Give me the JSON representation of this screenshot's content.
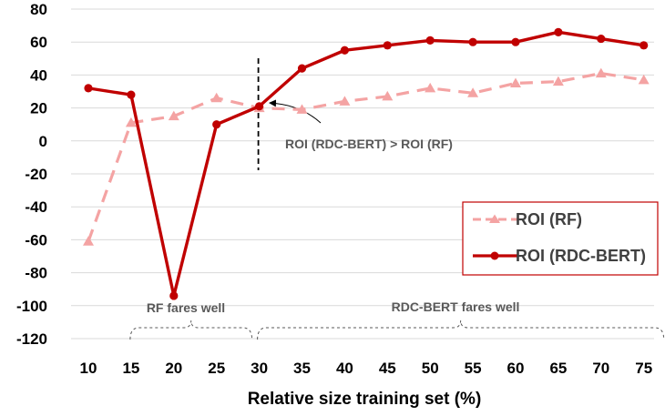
{
  "chart_data": {
    "type": "line",
    "title": "",
    "xlabel": "Relative size training set (%)",
    "ylabel": "",
    "x": [
      10,
      15,
      20,
      25,
      30,
      35,
      40,
      45,
      50,
      55,
      60,
      65,
      70,
      75
    ],
    "ylim": [
      -120,
      80
    ],
    "yticks": [
      -120,
      -100,
      -80,
      -60,
      -40,
      -20,
      0,
      20,
      40,
      60,
      80
    ],
    "grid": "horizontal",
    "legend_position": "right",
    "series": [
      {
        "name": "ROI (RF)",
        "style": "dashed",
        "marker": "triangle",
        "color": "#f4a3a3",
        "values": [
          -61,
          11,
          15,
          26,
          20,
          19,
          24,
          27,
          32,
          29,
          35,
          36,
          41,
          37
        ]
      },
      {
        "name": "ROI (RDC-BERT)",
        "style": "solid",
        "marker": "circle",
        "color": "#c00000",
        "values": [
          32,
          28,
          -94,
          10,
          21,
          44,
          55,
          58,
          61,
          60,
          60,
          66,
          62,
          58
        ]
      }
    ],
    "annotations": {
      "crossover_label": "ROI (RDC-BERT) > ROI (RF)",
      "crossover_x": 30,
      "region_rf_label": "RF fares well",
      "region_rf_range": [
        15,
        30
      ],
      "region_bert_label": "RDC-BERT fares well",
      "region_bert_range": [
        30,
        75
      ]
    }
  }
}
